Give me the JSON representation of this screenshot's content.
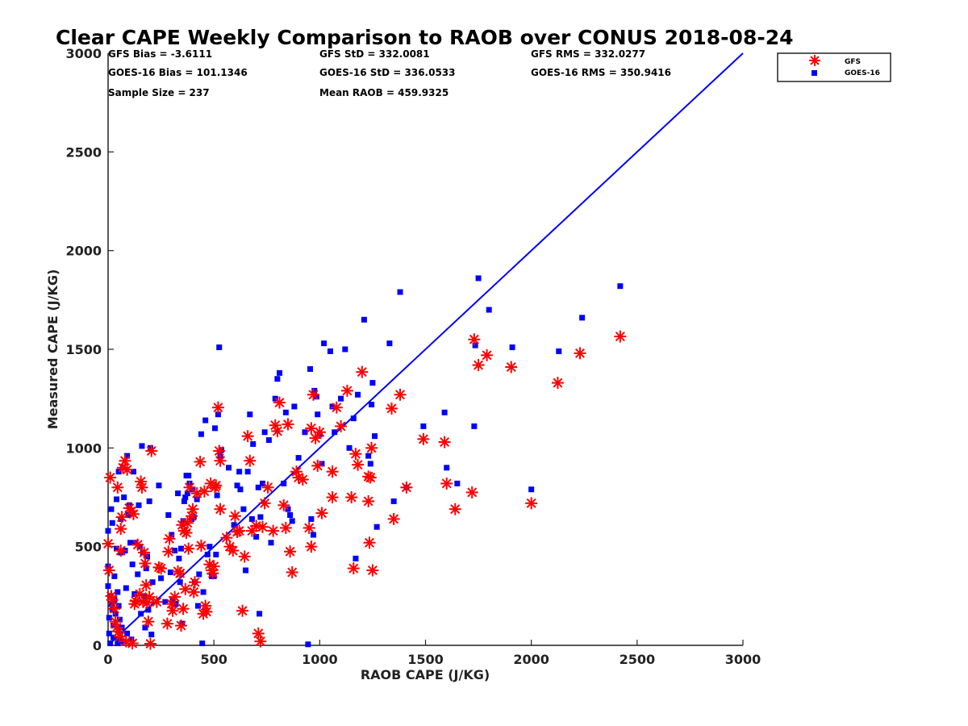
{
  "chart_data": {
    "type": "scatter",
    "title": "Clear CAPE Weekly Comparison to RAOB over CONUS 2018-08-24",
    "xlabel": "RAOB CAPE (J/KG)",
    "ylabel": "Measured CAPE (J/KG)",
    "xlim": [
      0,
      3000
    ],
    "ylim": [
      0,
      3000
    ],
    "xticks": [
      "0",
      "500",
      "1000",
      "1500",
      "2000",
      "2500",
      "3000"
    ],
    "yticks": [
      "0",
      "500",
      "1000",
      "1500",
      "2000",
      "2500",
      "3000"
    ],
    "grid": false,
    "legend_position": "top-right",
    "stats": [
      "GFS Bias = -3.6111",
      "GFS StD = 332.0081",
      "GFS RMS = 332.0277",
      "GOES-16 Bias = 101.1346",
      "GOES-16 StD = 336.0533",
      "GOES-16 RMS = 350.9416",
      "Sample Size = 237",
      "Mean RAOB = 459.9325"
    ],
    "reference_line": {
      "x": [
        0,
        3000
      ],
      "y": [
        0,
        3000
      ],
      "color": "#0000ff"
    },
    "series": [
      {
        "name": "GFS",
        "marker": "asterisk",
        "color": "#ff0000",
        "points": [
          [
            0,
            515
          ],
          [
            5,
            380
          ],
          [
            10,
            850
          ],
          [
            15,
            250
          ],
          [
            20,
            230
          ],
          [
            30,
            185
          ],
          [
            35,
            120
          ],
          [
            40,
            90
          ],
          [
            45,
            800
          ],
          [
            50,
            70
          ],
          [
            55,
            45
          ],
          [
            60,
            590
          ],
          [
            60,
            480
          ],
          [
            65,
            650
          ],
          [
            70,
            900
          ],
          [
            80,
            935
          ],
          [
            85,
            20
          ],
          [
            90,
            890
          ],
          [
            100,
            695
          ],
          [
            110,
            680
          ],
          [
            115,
            10
          ],
          [
            120,
            665
          ],
          [
            125,
            210
          ],
          [
            130,
            225
          ],
          [
            140,
            510
          ],
          [
            150,
            260
          ],
          [
            155,
            830
          ],
          [
            160,
            800
          ],
          [
            165,
            220
          ],
          [
            170,
            470
          ],
          [
            175,
            415
          ],
          [
            180,
            305
          ],
          [
            185,
            215
          ],
          [
            190,
            120
          ],
          [
            195,
            245
          ],
          [
            200,
            8
          ],
          [
            205,
            985
          ],
          [
            230,
            220
          ],
          [
            240,
            395
          ],
          [
            250,
            390
          ],
          [
            280,
            110
          ],
          [
            285,
            475
          ],
          [
            290,
            540
          ],
          [
            300,
            210
          ],
          [
            305,
            175
          ],
          [
            315,
            245
          ],
          [
            330,
            375
          ],
          [
            340,
            365
          ],
          [
            345,
            100
          ],
          [
            350,
            610
          ],
          [
            355,
            185
          ],
          [
            360,
            580
          ],
          [
            365,
            285
          ],
          [
            370,
            570
          ],
          [
            375,
            620
          ],
          [
            380,
            490
          ],
          [
            385,
            800
          ],
          [
            395,
            655
          ],
          [
            400,
            690
          ],
          [
            405,
            270
          ],
          [
            410,
            320
          ],
          [
            420,
            770
          ],
          [
            435,
            930
          ],
          [
            440,
            505
          ],
          [
            450,
            160
          ],
          [
            455,
            780
          ],
          [
            460,
            200
          ],
          [
            465,
            170
          ],
          [
            480,
            410
          ],
          [
            485,
            820
          ],
          [
            490,
            380
          ],
          [
            495,
            365
          ],
          [
            500,
            400
          ],
          [
            505,
            800
          ],
          [
            510,
            810
          ],
          [
            520,
            1205
          ],
          [
            525,
            985
          ],
          [
            530,
            935
          ],
          [
            530,
            690
          ],
          [
            560,
            545
          ],
          [
            575,
            500
          ],
          [
            590,
            480
          ],
          [
            600,
            655
          ],
          [
            610,
            575
          ],
          [
            620,
            580
          ],
          [
            635,
            175
          ],
          [
            645,
            450
          ],
          [
            660,
            1060
          ],
          [
            670,
            935
          ],
          [
            680,
            580
          ],
          [
            700,
            605
          ],
          [
            710,
            60
          ],
          [
            720,
            20
          ],
          [
            730,
            600
          ],
          [
            740,
            720
          ],
          [
            755,
            800
          ],
          [
            780,
            580
          ],
          [
            790,
            1115
          ],
          [
            800,
            1085
          ],
          [
            810,
            1230
          ],
          [
            830,
            710
          ],
          [
            840,
            595
          ],
          [
            850,
            1120
          ],
          [
            860,
            475
          ],
          [
            870,
            370
          ],
          [
            890,
            880
          ],
          [
            900,
            850
          ],
          [
            920,
            840
          ],
          [
            950,
            595
          ],
          [
            960,
            1100
          ],
          [
            960,
            500
          ],
          [
            970,
            1270
          ],
          [
            980,
            1050
          ],
          [
            990,
            910
          ],
          [
            1000,
            1080
          ],
          [
            1010,
            670
          ],
          [
            1060,
            750
          ],
          [
            1060,
            880
          ],
          [
            1080,
            1205
          ],
          [
            1100,
            1110
          ],
          [
            1130,
            1290
          ],
          [
            1150,
            750
          ],
          [
            1160,
            390
          ],
          [
            1170,
            970
          ],
          [
            1180,
            915
          ],
          [
            1200,
            1385
          ],
          [
            1230,
            730
          ],
          [
            1230,
            855
          ],
          [
            1235,
            520
          ],
          [
            1240,
            850
          ],
          [
            1245,
            1000
          ],
          [
            1250,
            380
          ],
          [
            1340,
            1200
          ],
          [
            1350,
            640
          ],
          [
            1380,
            1270
          ],
          [
            1410,
            800
          ],
          [
            1490,
            1045
          ],
          [
            1590,
            1030
          ],
          [
            1600,
            820
          ],
          [
            1640,
            690
          ],
          [
            1720,
            775
          ],
          [
            1730,
            1550
          ],
          [
            1750,
            1420
          ],
          [
            1790,
            1470
          ],
          [
            1905,
            1410
          ],
          [
            2000,
            720
          ],
          [
            2125,
            1330
          ],
          [
            2230,
            1480
          ],
          [
            2420,
            1565
          ]
        ]
      },
      {
        "name": "GOES-16",
        "marker": "square",
        "color": "#0000ff",
        "points": [
          [
            0,
            580
          ],
          [
            0,
            400
          ],
          [
            0,
            300
          ],
          [
            5,
            140
          ],
          [
            5,
            60
          ],
          [
            10,
            250
          ],
          [
            10,
            10
          ],
          [
            15,
            690
          ],
          [
            15,
            210
          ],
          [
            20,
            620
          ],
          [
            20,
            180
          ],
          [
            25,
            100
          ],
          [
            25,
            40
          ],
          [
            30,
            350
          ],
          [
            30,
            230
          ],
          [
            35,
            160
          ],
          [
            40,
            740
          ],
          [
            40,
            490
          ],
          [
            45,
            270
          ],
          [
            45,
            10
          ],
          [
            50,
            880
          ],
          [
            50,
            200
          ],
          [
            55,
            130
          ],
          [
            55,
            35
          ],
          [
            60,
            640
          ],
          [
            60,
            470
          ],
          [
            65,
            90
          ],
          [
            70,
            900
          ],
          [
            70,
            20
          ],
          [
            75,
            750
          ],
          [
            80,
            480
          ],
          [
            85,
            290
          ],
          [
            90,
            960
          ],
          [
            90,
            60
          ],
          [
            95,
            660
          ],
          [
            100,
            710
          ],
          [
            105,
            520
          ],
          [
            110,
            30
          ],
          [
            115,
            410
          ],
          [
            120,
            880
          ],
          [
            125,
            260
          ],
          [
            130,
            520
          ],
          [
            140,
            360
          ],
          [
            145,
            710
          ],
          [
            150,
            500
          ],
          [
            155,
            160
          ],
          [
            160,
            1010
          ],
          [
            165,
            470
          ],
          [
            170,
            250
          ],
          [
            175,
            90
          ],
          [
            180,
            390
          ],
          [
            185,
            450
          ],
          [
            190,
            180
          ],
          [
            195,
            730
          ],
          [
            200,
            1000
          ],
          [
            205,
            55
          ],
          [
            210,
            320
          ],
          [
            240,
            810
          ],
          [
            250,
            340
          ],
          [
            270,
            220
          ],
          [
            285,
            660
          ],
          [
            295,
            370
          ],
          [
            300,
            560
          ],
          [
            305,
            230
          ],
          [
            315,
            480
          ],
          [
            320,
            210
          ],
          [
            330,
            770
          ],
          [
            335,
            440
          ],
          [
            340,
            320
          ],
          [
            345,
            490
          ],
          [
            350,
            110
          ],
          [
            355,
            630
          ],
          [
            360,
            730
          ],
          [
            365,
            750
          ],
          [
            370,
            860
          ],
          [
            375,
            770
          ],
          [
            380,
            860
          ],
          [
            385,
            820
          ],
          [
            395,
            640
          ],
          [
            400,
            790
          ],
          [
            405,
            650
          ],
          [
            410,
            320
          ],
          [
            420,
            740
          ],
          [
            425,
            200
          ],
          [
            430,
            360
          ],
          [
            440,
            1070
          ],
          [
            445,
            10
          ],
          [
            450,
            270
          ],
          [
            460,
            1140
          ],
          [
            470,
            460
          ],
          [
            480,
            500
          ],
          [
            490,
            350
          ],
          [
            500,
            350
          ],
          [
            505,
            1100
          ],
          [
            510,
            460
          ],
          [
            515,
            760
          ],
          [
            520,
            1170
          ],
          [
            525,
            1510
          ],
          [
            530,
            960
          ],
          [
            535,
            990
          ],
          [
            570,
            900
          ],
          [
            595,
            610
          ],
          [
            610,
            810
          ],
          [
            620,
            880
          ],
          [
            625,
            790
          ],
          [
            640,
            690
          ],
          [
            650,
            380
          ],
          [
            660,
            880
          ],
          [
            670,
            1170
          ],
          [
            680,
            640
          ],
          [
            685,
            1020
          ],
          [
            700,
            550
          ],
          [
            710,
            800
          ],
          [
            715,
            160
          ],
          [
            720,
            650
          ],
          [
            730,
            820
          ],
          [
            740,
            1080
          ],
          [
            760,
            1040
          ],
          [
            770,
            520
          ],
          [
            790,
            1250
          ],
          [
            800,
            1350
          ],
          [
            810,
            1380
          ],
          [
            830,
            820
          ],
          [
            840,
            1180
          ],
          [
            850,
            690
          ],
          [
            860,
            660
          ],
          [
            870,
            630
          ],
          [
            880,
            1210
          ],
          [
            900,
            950
          ],
          [
            930,
            1080
          ],
          [
            945,
            5
          ],
          [
            955,
            1400
          ],
          [
            960,
            640
          ],
          [
            970,
            560
          ],
          [
            975,
            1290
          ],
          [
            985,
            1260
          ],
          [
            990,
            1170
          ],
          [
            1000,
            1070
          ],
          [
            1010,
            920
          ],
          [
            1020,
            1530
          ],
          [
            1050,
            1490
          ],
          [
            1060,
            1210
          ],
          [
            1070,
            1080
          ],
          [
            1100,
            1250
          ],
          [
            1120,
            1500
          ],
          [
            1140,
            1000
          ],
          [
            1160,
            1150
          ],
          [
            1170,
            440
          ],
          [
            1180,
            1270
          ],
          [
            1210,
            1650
          ],
          [
            1230,
            960
          ],
          [
            1240,
            920
          ],
          [
            1245,
            1220
          ],
          [
            1250,
            1330
          ],
          [
            1260,
            1060
          ],
          [
            1270,
            600
          ],
          [
            1330,
            1530
          ],
          [
            1350,
            730
          ],
          [
            1380,
            1790
          ],
          [
            1410,
            800
          ],
          [
            1490,
            1110
          ],
          [
            1590,
            1180
          ],
          [
            1600,
            900
          ],
          [
            1650,
            820
          ],
          [
            1730,
            1110
          ],
          [
            1735,
            1520
          ],
          [
            1750,
            1860
          ],
          [
            1800,
            1700
          ],
          [
            1910,
            1510
          ],
          [
            2000,
            790
          ],
          [
            2130,
            1490
          ],
          [
            2240,
            1660
          ],
          [
            2420,
            1820
          ]
        ]
      }
    ]
  }
}
